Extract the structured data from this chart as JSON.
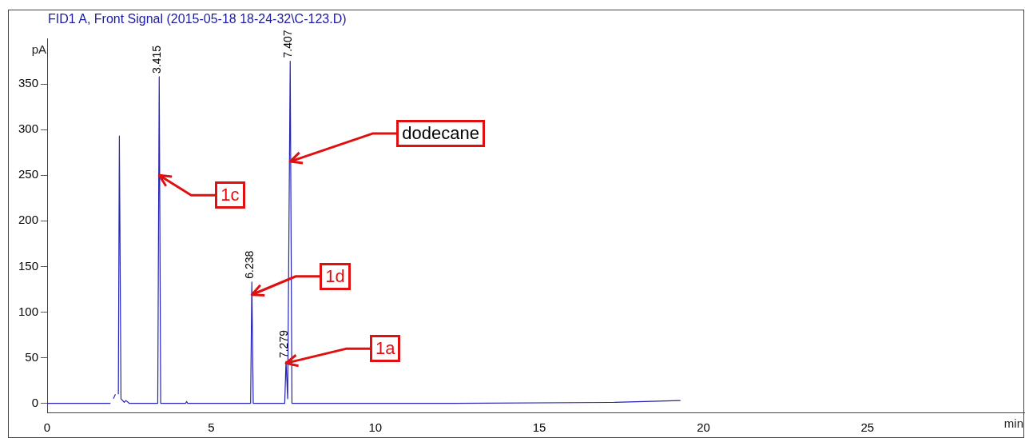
{
  "chart_data": {
    "type": "line",
    "title": "FID1 A, Front Signal (2015-05-18 18-24-32\\C-123.D)",
    "xlabel": "min",
    "ylabel": "pA",
    "xlim": [
      0,
      29.8
    ],
    "xticks": [
      0,
      5,
      10,
      15,
      20,
      25
    ],
    "ylim": [
      -10,
      400
    ],
    "yticks": [
      0,
      50,
      100,
      150,
      200,
      250,
      300,
      350
    ],
    "grid": false,
    "legend": false,
    "marker": "none",
    "line_style": "solid",
    "series": [
      {
        "color": "#2323b4",
        "x": [
          0,
          1.93,
          1.97,
          2.02,
          2.08,
          2.12,
          2.17,
          2.2,
          2.25,
          2.3,
          2.35,
          2.4,
          2.5,
          3.37,
          3.415,
          3.46,
          4.22,
          4.25,
          4.28,
          6.2,
          6.238,
          6.28,
          7.24,
          7.279,
          7.33,
          7.407,
          7.46,
          12.4,
          17.3,
          19.3
        ],
        "values": [
          0,
          0,
          null,
          5,
          10,
          null,
          10,
          293,
          5,
          3,
          1,
          3,
          0,
          0,
          358,
          0,
          0,
          2,
          0,
          0,
          133,
          0,
          0,
          46,
          5,
          375,
          0,
          0,
          1,
          3
        ]
      }
    ],
    "annotations": [
      {
        "text": "3.415",
        "x": 3.415,
        "y": 358
      },
      {
        "text": "6.238",
        "x": 6.238,
        "y": 133
      },
      {
        "text": "7.279",
        "x": 7.279,
        "y": 46
      },
      {
        "text": "7.407",
        "x": 7.407,
        "y": 375
      },
      {
        "text": "1c",
        "x": 3.415,
        "y": 250
      },
      {
        "text": "1d",
        "x": 6.238,
        "y": 119
      },
      {
        "text": "dodecane",
        "x": 7.407,
        "y": 265
      },
      {
        "text": "1a",
        "x": 7.279,
        "y": 44
      }
    ]
  }
}
